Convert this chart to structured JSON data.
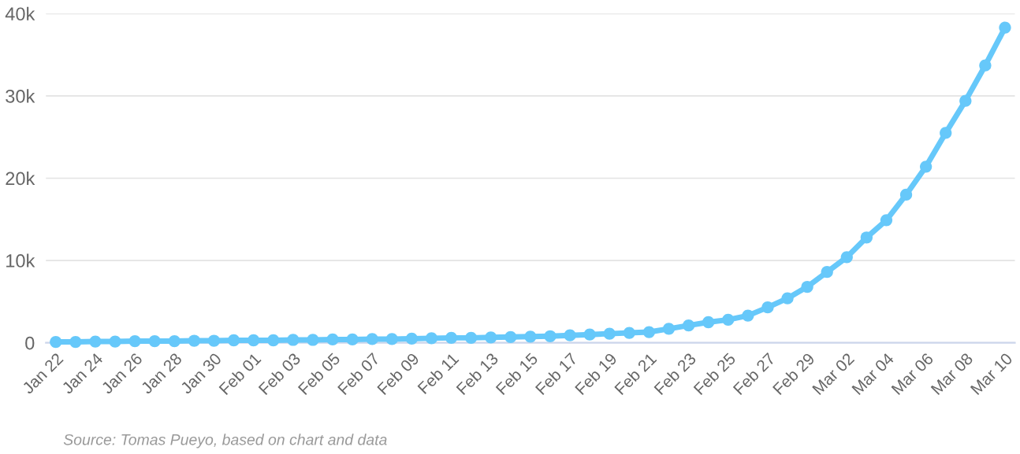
{
  "chart_data": {
    "type": "line",
    "categories": [
      "Jan 22",
      null,
      "Jan 24",
      null,
      "Jan 26",
      null,
      "Jan 28",
      null,
      "Jan 30",
      null,
      "Feb 01",
      null,
      "Feb 03",
      null,
      "Feb 05",
      null,
      "Feb 07",
      null,
      "Feb 09",
      null,
      "Feb 11",
      null,
      "Feb 13",
      null,
      "Feb 15",
      null,
      "Feb 17",
      null,
      "Feb 19",
      null,
      "Feb 21",
      null,
      "Feb 23",
      null,
      "Feb 25",
      null,
      "Feb 27",
      null,
      "Feb 29",
      null,
      "Mar 02",
      null,
      "Mar 04",
      null,
      "Mar 06",
      null,
      "Mar 08",
      null,
      "Mar 10"
    ],
    "series": [
      {
        "color": "#66c8fa",
        "values": [
          100,
          100,
          150,
          150,
          200,
          200,
          200,
          250,
          250,
          300,
          300,
          300,
          350,
          350,
          400,
          400,
          450,
          450,
          500,
          550,
          600,
          600,
          650,
          700,
          750,
          800,
          900,
          1000,
          1100,
          1200,
          1300,
          1700,
          2100,
          2500,
          2800,
          3300,
          4300,
          5400,
          6800,
          8600,
          10400,
          12800,
          14900,
          18000,
          21400,
          25500,
          29400,
          33700,
          38300
        ]
      }
    ],
    "ylim": [
      0,
      40000
    ],
    "yticks": [
      {
        "value": 0,
        "label": "0"
      },
      {
        "value": 10000,
        "label": "10k"
      },
      {
        "value": 20000,
        "label": "20k"
      },
      {
        "value": 30000,
        "label": "30k"
      },
      {
        "value": 40000,
        "label": "40k"
      }
    ],
    "grid": "y",
    "marker": "circle",
    "line_style": "solid",
    "annotations": [
      "Source: Tomas Pueyo, based on chart and data"
    ]
  }
}
